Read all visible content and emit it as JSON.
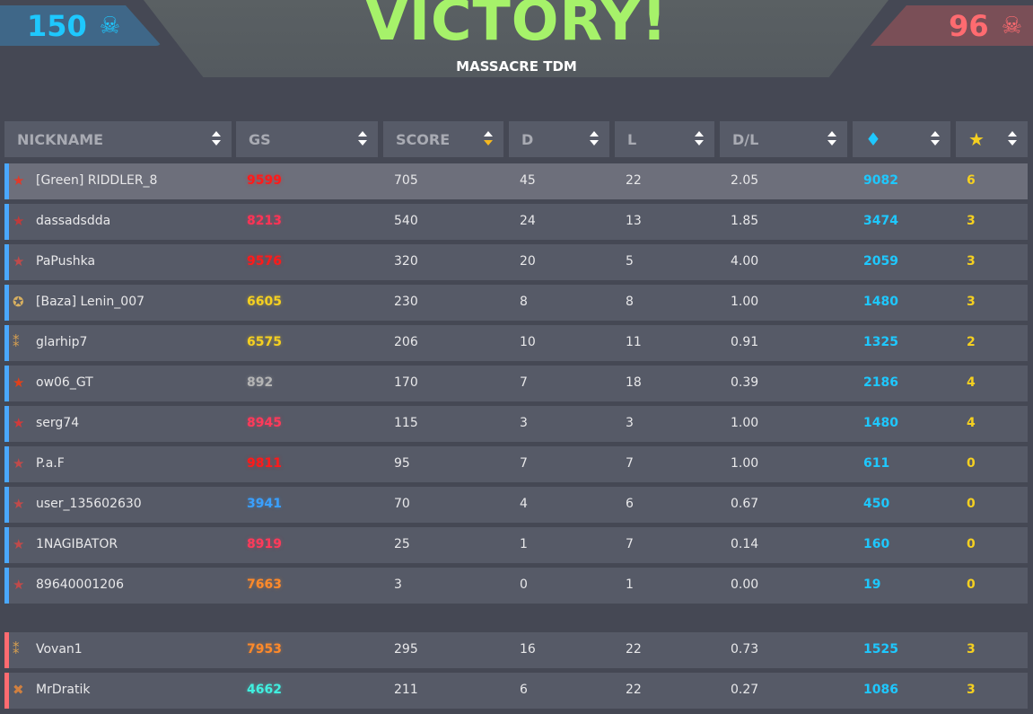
{
  "header": {
    "title": "VICTORY!",
    "mode": "MASSACRE TDM",
    "blue_score": "150",
    "red_score": "96",
    "skull_icon": "☠"
  },
  "columns": [
    {
      "label": "NICKNAME"
    },
    {
      "label": "GS"
    },
    {
      "label": "SCORE",
      "sorted": true
    },
    {
      "label": "D"
    },
    {
      "label": "L"
    },
    {
      "label": "D/L"
    },
    {
      "label": "",
      "icon": "gem-icon",
      "glyph": "♦"
    },
    {
      "label": "",
      "icon": "star-icon",
      "glyph": "★"
    }
  ],
  "colors": {
    "blue_team": "#4aa8ff",
    "red_team": "#ff6b70",
    "gem": "#1ec8ff",
    "star": "#f5d020"
  },
  "blue_team": [
    {
      "rank": "★",
      "rank_color": "#e03a2a",
      "name": "[Green] RIDDLER_8",
      "gs": "9599",
      "gs_color": "#ff1a1a",
      "score": "705",
      "d": "45",
      "l": "22",
      "dl": "2.05",
      "gems": "9082",
      "stars": "6",
      "highlight": true
    },
    {
      "rank": "★",
      "rank_color": "#c03a3a",
      "name": "dassadsdda",
      "gs": "8213",
      "gs_color": "#ff3355",
      "score": "540",
      "d": "24",
      "l": "13",
      "dl": "1.85",
      "gems": "3474",
      "stars": "3"
    },
    {
      "rank": "★",
      "rank_color": "#c04a4a",
      "name": "PaPushka",
      "gs": "9576",
      "gs_color": "#ff1a1a",
      "score": "320",
      "d": "20",
      "l": "5",
      "dl": "4.00",
      "gems": "2059",
      "stars": "3"
    },
    {
      "rank": "✪",
      "rank_color": "#d8b060",
      "name": "[Baza] Lenin_007",
      "gs": "6605",
      "gs_color": "#f5d020",
      "score": "230",
      "d": "8",
      "l": "8",
      "dl": "1.00",
      "gems": "1480",
      "stars": "3"
    },
    {
      "rank": "⁑",
      "rank_color": "#d8a050",
      "name": "glarhip7",
      "gs": "6575",
      "gs_color": "#f5d020",
      "score": "206",
      "d": "10",
      "l": "11",
      "dl": "0.91",
      "gems": "1325",
      "stars": "2"
    },
    {
      "rank": "★",
      "rank_color": "#e0401a",
      "name": "ow06_GT",
      "gs": "892",
      "gs_color": "#b4b4b4",
      "score": "170",
      "d": "7",
      "l": "18",
      "dl": "0.39",
      "gems": "2186",
      "stars": "4"
    },
    {
      "rank": "★",
      "rank_color": "#d03a3a",
      "name": "serg74",
      "gs": "8945",
      "gs_color": "#ff3a5a",
      "score": "115",
      "d": "3",
      "l": "3",
      "dl": "1.00",
      "gems": "1480",
      "stars": "4"
    },
    {
      "rank": "★",
      "rank_color": "#c04a4a",
      "name": "P.a.F",
      "gs": "9811",
      "gs_color": "#ff1a1a",
      "score": "95",
      "d": "7",
      "l": "7",
      "dl": "1.00",
      "gems": "611",
      "stars": "0"
    },
    {
      "rank": "★",
      "rank_color": "#c04a4a",
      "name": "user_135602630",
      "gs": "3941",
      "gs_color": "#3aa0ff",
      "score": "70",
      "d": "4",
      "l": "6",
      "dl": "0.67",
      "gems": "450",
      "stars": "0"
    },
    {
      "rank": "★",
      "rank_color": "#c04a4a",
      "name": "1NAGIBATOR",
      "gs": "8919",
      "gs_color": "#ff3a5a",
      "score": "25",
      "d": "1",
      "l": "7",
      "dl": "0.14",
      "gems": "160",
      "stars": "0"
    },
    {
      "rank": "★",
      "rank_color": "#c04a4a",
      "name": "89640001206",
      "gs": "7663",
      "gs_color": "#ff8a2a",
      "score": "3",
      "d": "0",
      "l": "1",
      "dl": "0.00",
      "gems": "19",
      "stars": "0"
    }
  ],
  "red_team": [
    {
      "rank": "⁑",
      "rank_color": "#d8a050",
      "name": "Vovan1",
      "gs": "7953",
      "gs_color": "#ff8a2a",
      "score": "295",
      "d": "16",
      "l": "22",
      "dl": "0.73",
      "gems": "1525",
      "stars": "3"
    },
    {
      "rank": "✖",
      "rank_color": "#d08040",
      "name": "MrDratik",
      "gs": "4662",
      "gs_color": "#40f0e0",
      "score": "211",
      "d": "6",
      "l": "22",
      "dl": "0.27",
      "gems": "1086",
      "stars": "3"
    }
  ]
}
